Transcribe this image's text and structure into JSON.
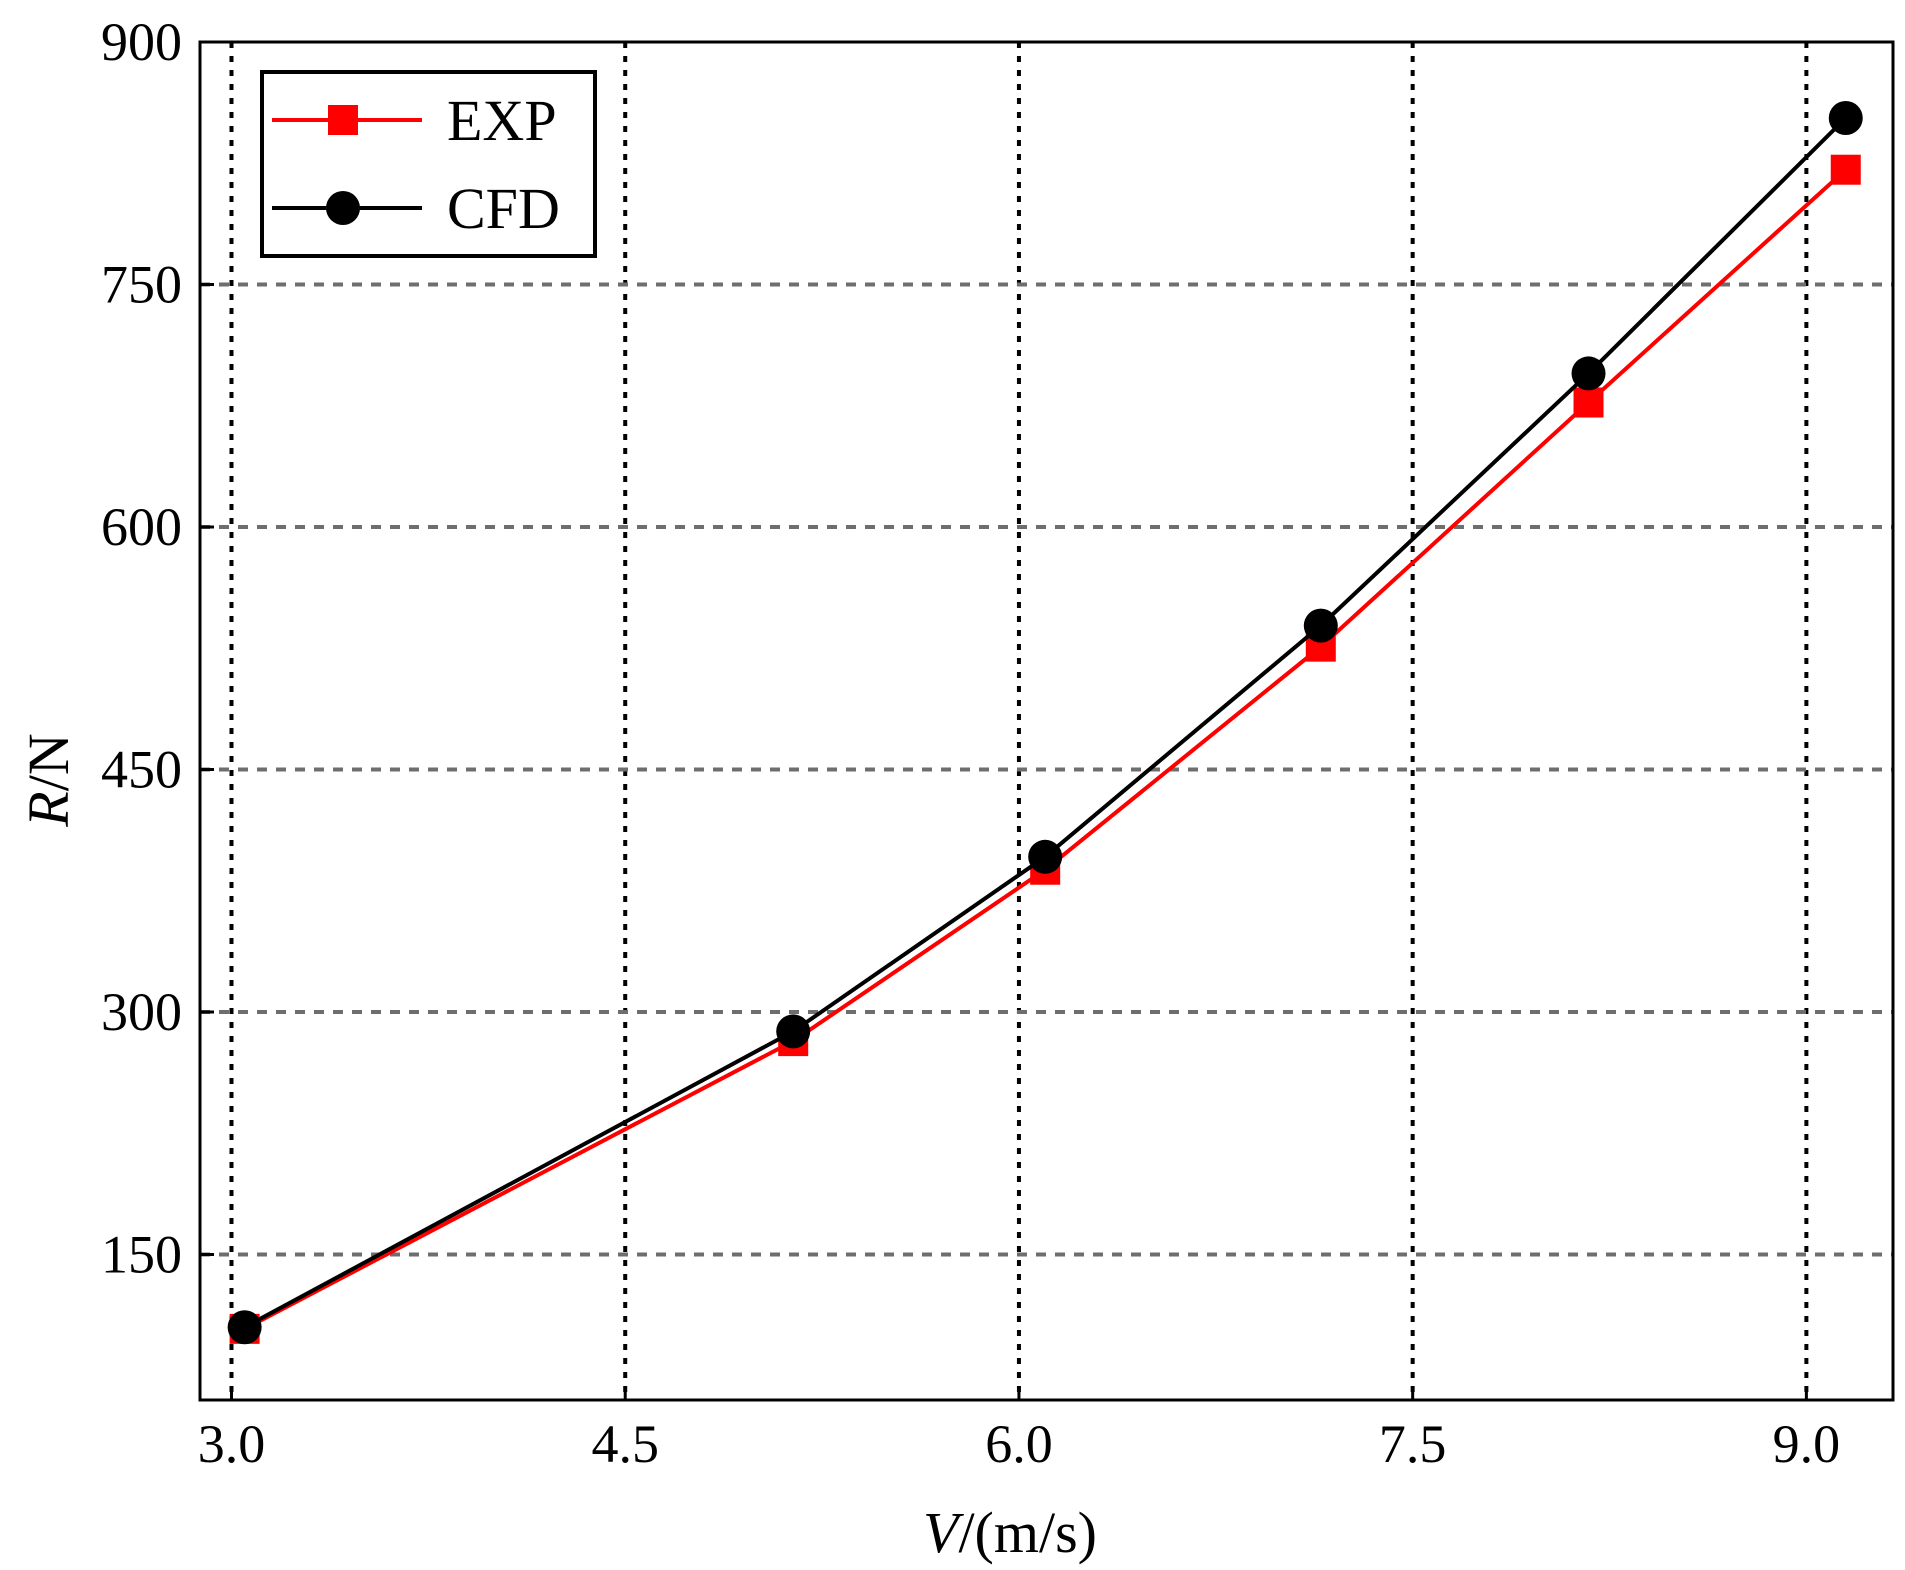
{
  "chart_data": {
    "type": "line",
    "title": "",
    "xlabel": {
      "italic": "V",
      "rest": "/(m/s)"
    },
    "ylabel": {
      "italic": "R",
      "rest": "/N"
    },
    "xlim": [
      2.88,
      9.33
    ],
    "ylim": [
      60,
      900
    ],
    "xticks": [
      "3.0",
      "4.5",
      "6.0",
      "7.5",
      "9.0"
    ],
    "xtick_values": [
      3.0,
      4.5,
      6.0,
      7.5,
      9.0
    ],
    "yticks": [
      "150",
      "300",
      "450",
      "600",
      "750",
      "900"
    ],
    "ytick_values": [
      150,
      300,
      450,
      600,
      750,
      900
    ],
    "grid": true,
    "legend_position": "top-left",
    "series": [
      {
        "name": "EXP",
        "color": "#ff0000",
        "marker": "square",
        "x": [
          3.05,
          5.14,
          6.1,
          7.15,
          8.17,
          9.15
        ],
        "y": [
          104,
          282,
          388,
          526,
          677,
          821
        ]
      },
      {
        "name": "CFD",
        "color": "#000000",
        "marker": "circle",
        "x": [
          3.05,
          5.14,
          6.1,
          7.15,
          8.17,
          9.15
        ],
        "y": [
          105,
          288,
          396,
          539,
          695,
          853
        ]
      }
    ]
  }
}
